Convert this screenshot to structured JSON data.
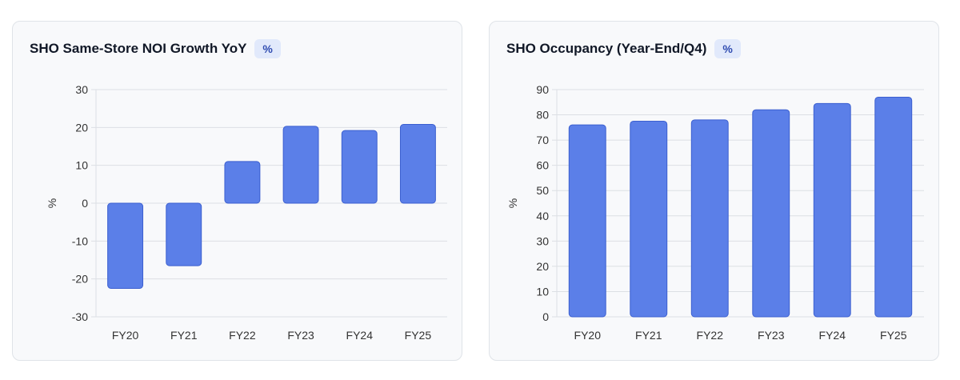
{
  "charts": [
    {
      "title": "SHO Same-Store NOI Growth YoY",
      "unit_badge": "%",
      "chart_data": {
        "type": "bar",
        "title": "SHO Same-Store NOI Growth YoY",
        "xlabel": "",
        "ylabel": "%",
        "categories": [
          "FY20",
          "FY21",
          "FY22",
          "FY23",
          "FY24",
          "FY25"
        ],
        "values": [
          -22.5,
          -16.5,
          11,
          20.3,
          19.2,
          20.8
        ],
        "ylim": [
          -30,
          30
        ],
        "yticks": [
          -30,
          -20,
          -10,
          0,
          10,
          20,
          30
        ],
        "grid": true,
        "bar_color": "#5b7fe8",
        "bar_border": "#3b5fd0"
      }
    },
    {
      "title": "SHO Occupancy (Year-End/Q4)",
      "unit_badge": "%",
      "chart_data": {
        "type": "bar",
        "title": "SHO Occupancy (Year-End/Q4)",
        "xlabel": "",
        "ylabel": "%",
        "categories": [
          "FY20",
          "FY21",
          "FY22",
          "FY23",
          "FY24",
          "FY25"
        ],
        "values": [
          76,
          77.5,
          78,
          82,
          84.5,
          87
        ],
        "ylim": [
          0,
          90
        ],
        "yticks": [
          0,
          10,
          20,
          30,
          40,
          50,
          60,
          70,
          80,
          90
        ],
        "grid": true,
        "bar_color": "#5b7fe8",
        "bar_border": "#3b5fd0"
      }
    }
  ]
}
